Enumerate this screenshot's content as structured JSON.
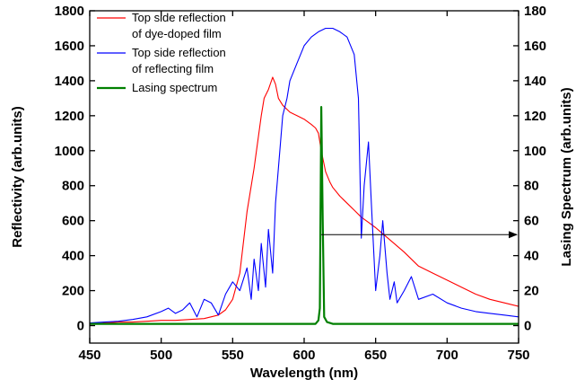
{
  "chart_data": {
    "type": "line",
    "xlabel": "Wavelength (nm)",
    "ylabel_left": "Reflectivity (arb.units)",
    "ylabel_right": "Lasing Spectrum (arb.units)",
    "xlim": [
      450,
      750
    ],
    "ylim_left": [
      -100,
      1800
    ],
    "ylim_right": [
      -10,
      180
    ],
    "x_ticks": [
      "450",
      "500",
      "550",
      "600",
      "650",
      "700",
      "750"
    ],
    "y_left_ticks": [
      "0",
      "200",
      "400",
      "600",
      "800",
      "1000",
      "1200",
      "1400",
      "1600",
      "1800"
    ],
    "y_right_ticks": [
      "0",
      "20",
      "40",
      "60",
      "80",
      "100",
      "120",
      "140",
      "160",
      "180"
    ],
    "grid": false,
    "legend_position": "top-left",
    "series": [
      {
        "name": "Top side reflection of dye-doped film",
        "legend_lines": [
          "Top side reflection",
          "of dye-doped film"
        ],
        "color": "#ff0000",
        "axis": "left",
        "x": [
          450,
          460,
          470,
          480,
          490,
          500,
          510,
          520,
          530,
          540,
          545,
          550,
          555,
          560,
          565,
          570,
          572,
          575,
          578,
          580,
          582,
          585,
          590,
          595,
          600,
          605,
          608,
          610,
          612,
          615,
          618,
          620,
          625,
          630,
          635,
          640,
          645,
          650,
          660,
          670,
          680,
          690,
          700,
          710,
          720,
          730,
          740,
          750
        ],
        "y": [
          10,
          15,
          20,
          20,
          25,
          30,
          30,
          35,
          40,
          60,
          90,
          150,
          300,
          650,
          900,
          1200,
          1300,
          1350,
          1420,
          1380,
          1300,
          1260,
          1220,
          1200,
          1180,
          1150,
          1130,
          1100,
          1000,
          880,
          820,
          790,
          740,
          700,
          660,
          620,
          590,
          560,
          490,
          420,
          340,
          300,
          260,
          220,
          180,
          150,
          130,
          110
        ]
      },
      {
        "name": "Top side reflection of reflecting film",
        "legend_lines": [
          "Top side reflection",
          "of reflecting film"
        ],
        "color": "#0000ff",
        "axis": "left",
        "x": [
          450,
          460,
          470,
          480,
          490,
          500,
          505,
          510,
          515,
          520,
          525,
          530,
          535,
          540,
          545,
          550,
          555,
          560,
          563,
          565,
          568,
          570,
          573,
          575,
          578,
          580,
          583,
          585,
          588,
          590,
          595,
          600,
          605,
          610,
          615,
          620,
          625,
          630,
          635,
          638,
          640,
          642,
          645,
          647,
          650,
          653,
          655,
          658,
          660,
          663,
          665,
          670,
          675,
          680,
          690,
          700,
          710,
          720,
          730,
          740,
          750
        ],
        "y": [
          15,
          20,
          25,
          35,
          50,
          80,
          100,
          70,
          90,
          130,
          50,
          150,
          130,
          60,
          180,
          250,
          200,
          330,
          150,
          380,
          200,
          470,
          220,
          550,
          300,
          700,
          1000,
          1200,
          1300,
          1400,
          1500,
          1600,
          1650,
          1680,
          1700,
          1700,
          1680,
          1650,
          1550,
          1300,
          500,
          800,
          1050,
          700,
          200,
          400,
          600,
          300,
          150,
          250,
          130,
          200,
          280,
          150,
          180,
          130,
          100,
          80,
          70,
          60,
          50
        ]
      },
      {
        "name": "Lasing spectrum",
        "legend_lines": [
          "Lasing spectrum"
        ],
        "color": "#008000",
        "axis": "right",
        "x": [
          450,
          500,
          550,
          600,
          608,
          610,
          611,
          612,
          613,
          614,
          616,
          620,
          650,
          700,
          750
        ],
        "y": [
          1,
          1,
          1,
          1,
          1,
          3,
          10,
          125,
          60,
          5,
          2,
          1,
          1,
          1,
          1
        ]
      }
    ],
    "annotation": {
      "type": "arrow",
      "from": [
        612,
        52
      ],
      "to": [
        750,
        52
      ],
      "axis": "right"
    }
  }
}
